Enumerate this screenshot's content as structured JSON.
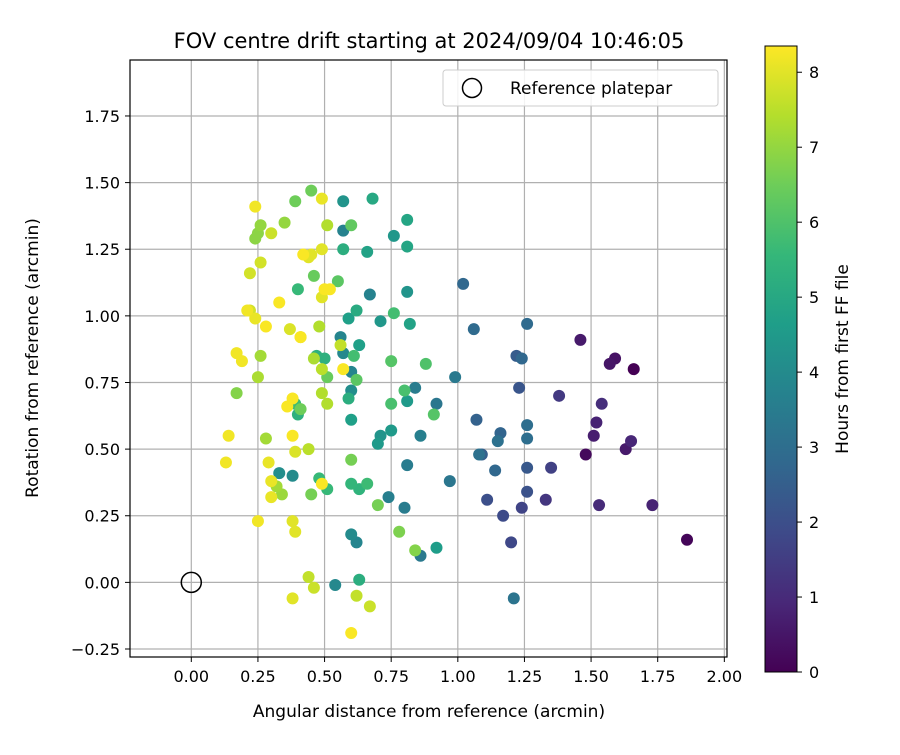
{
  "chart_data": {
    "type": "scatter",
    "title": "FOV centre drift starting at 2024/09/04 10:46:05",
    "xlabel": "Angular distance from reference (arcmin)",
    "ylabel": "Rotation from reference (arcmin)",
    "xlim": [
      -0.23,
      2.01
    ],
    "ylim": [
      -0.28,
      1.96
    ],
    "x_ticks": [
      "0.00",
      "0.25",
      "0.50",
      "0.75",
      "1.00",
      "1.25",
      "1.50",
      "1.75",
      "2.00"
    ],
    "y_ticks": [
      "−0.25",
      "0.00",
      "0.25",
      "0.50",
      "0.75",
      "1.00",
      "1.25",
      "1.50",
      "1.75"
    ],
    "grid": true,
    "legend": {
      "position": "top-right",
      "entries": [
        {
          "label": "Reference platepar",
          "marker": "open-circle"
        }
      ]
    },
    "reference_point": {
      "x": 0.0,
      "y": 0.0
    },
    "colorbar": {
      "label": "Hours from first FF file",
      "colormap": "viridis",
      "range": [
        0,
        8.35
      ],
      "ticks": [
        "0",
        "1",
        "2",
        "3",
        "4",
        "5",
        "6",
        "7",
        "8"
      ]
    },
    "series": [
      {
        "points": [
          [
            1.66,
            0.8,
            0.0
          ],
          [
            1.86,
            0.16,
            0.1
          ],
          [
            1.48,
            0.48,
            0.2
          ],
          [
            1.59,
            0.84,
            0.4
          ],
          [
            1.46,
            0.91,
            0.6
          ],
          [
            1.57,
            0.82,
            0.5
          ],
          [
            1.51,
            0.55,
            0.7
          ],
          [
            1.52,
            0.6,
            0.8
          ],
          [
            1.63,
            0.5,
            0.6
          ],
          [
            1.65,
            0.53,
            0.9
          ],
          [
            1.53,
            0.29,
            1.0
          ],
          [
            1.73,
            0.29,
            0.8
          ],
          [
            1.54,
            0.67,
            1.1
          ],
          [
            1.33,
            0.31,
            1.3
          ],
          [
            1.38,
            0.7,
            1.4
          ],
          [
            1.35,
            0.43,
            1.6
          ],
          [
            1.24,
            0.28,
            1.7
          ],
          [
            1.2,
            0.15,
            1.8
          ],
          [
            1.17,
            0.25,
            1.9
          ],
          [
            1.11,
            0.31,
            2.0
          ],
          [
            1.26,
            0.34,
            2.1
          ],
          [
            1.23,
            0.73,
            2.2
          ],
          [
            1.26,
            0.43,
            2.3
          ],
          [
            1.22,
            0.85,
            2.4
          ],
          [
            1.09,
            0.48,
            2.5
          ],
          [
            1.07,
            0.61,
            2.6
          ],
          [
            1.16,
            0.56,
            2.7
          ],
          [
            1.14,
            0.42,
            2.8
          ],
          [
            1.06,
            0.95,
            2.9
          ],
          [
            1.02,
            1.12,
            2.8
          ],
          [
            1.24,
            0.84,
            2.8
          ],
          [
            1.26,
            0.97,
            2.9
          ],
          [
            1.26,
            0.54,
            3.0
          ],
          [
            1.26,
            0.59,
            3.0
          ],
          [
            1.08,
            0.48,
            3.1
          ],
          [
            1.15,
            0.53,
            3.1
          ],
          [
            1.21,
            -0.06,
            3.2
          ],
          [
            0.97,
            0.38,
            3.3
          ],
          [
            0.92,
            0.67,
            3.3
          ],
          [
            0.99,
            0.77,
            3.4
          ],
          [
            0.86,
            0.1,
            3.4
          ],
          [
            0.84,
            0.73,
            3.5
          ],
          [
            0.81,
            0.44,
            3.5
          ],
          [
            0.8,
            0.28,
            3.5
          ],
          [
            0.86,
            0.55,
            3.6
          ],
          [
            0.74,
            0.32,
            3.6
          ],
          [
            0.67,
            1.08,
            3.7
          ],
          [
            0.57,
            1.32,
            3.7
          ],
          [
            0.56,
            0.92,
            3.8
          ],
          [
            0.6,
            0.79,
            3.8
          ],
          [
            0.62,
            0.15,
            3.8
          ],
          [
            0.57,
            0.86,
            3.9
          ],
          [
            0.54,
            -0.01,
            3.9
          ],
          [
            0.6,
            0.18,
            4.0
          ],
          [
            0.38,
            0.4,
            4.0
          ],
          [
            0.33,
            0.41,
            4.1
          ],
          [
            0.6,
            0.72,
            4.1
          ],
          [
            0.57,
            1.43,
            4.3
          ],
          [
            0.71,
            0.55,
            4.3
          ],
          [
            0.81,
            1.09,
            4.3
          ],
          [
            0.76,
            1.3,
            4.4
          ],
          [
            0.71,
            0.98,
            4.4
          ],
          [
            0.81,
            0.68,
            4.5
          ],
          [
            0.75,
            0.57,
            4.5
          ],
          [
            0.7,
            0.52,
            4.5
          ],
          [
            0.92,
            0.13,
            4.6
          ],
          [
            0.63,
            0.89,
            4.7
          ],
          [
            0.59,
            0.99,
            4.7
          ],
          [
            0.6,
            0.61,
            4.7
          ],
          [
            0.66,
            1.24,
            4.8
          ],
          [
            0.82,
            0.97,
            4.8
          ],
          [
            0.81,
            1.36,
            4.9
          ],
          [
            0.81,
            1.26,
            4.9
          ],
          [
            0.68,
            1.44,
            5.0
          ],
          [
            0.62,
            1.02,
            5.1
          ],
          [
            0.59,
            0.69,
            5.2
          ],
          [
            0.63,
            0.01,
            5.2
          ],
          [
            0.57,
            1.25,
            5.2
          ],
          [
            0.5,
            0.84,
            5.3
          ],
          [
            0.47,
            0.85,
            5.3
          ],
          [
            0.4,
            0.63,
            5.3
          ],
          [
            0.63,
            0.35,
            5.4
          ],
          [
            0.6,
            0.37,
            5.5
          ],
          [
            0.51,
            0.35,
            5.6
          ],
          [
            0.48,
            0.39,
            5.6
          ],
          [
            0.4,
            1.1,
            5.6
          ],
          [
            0.39,
            0.67,
            5.7
          ],
          [
            0.66,
            0.37,
            5.7
          ],
          [
            0.61,
            0.85,
            5.8
          ],
          [
            0.76,
            1.01,
            5.8
          ],
          [
            0.75,
            0.67,
            5.9
          ],
          [
            0.8,
            0.72,
            5.9
          ],
          [
            0.88,
            0.82,
            6.0
          ],
          [
            0.91,
            0.63,
            6.1
          ],
          [
            0.75,
            0.83,
            6.1
          ],
          [
            0.62,
            0.76,
            6.2
          ],
          [
            0.55,
            1.13,
            6.2
          ],
          [
            0.6,
            1.34,
            6.3
          ],
          [
            0.51,
            0.77,
            6.4
          ],
          [
            0.46,
            1.15,
            6.4
          ],
          [
            0.45,
            1.47,
            6.5
          ],
          [
            0.39,
            1.43,
            6.5
          ],
          [
            0.41,
            0.65,
            6.5
          ],
          [
            0.45,
            0.33,
            6.6
          ],
          [
            0.6,
            0.46,
            6.6
          ],
          [
            0.7,
            0.29,
            6.6
          ],
          [
            0.78,
            0.19,
            6.7
          ],
          [
            0.84,
            0.12,
            6.8
          ],
          [
            0.17,
            0.71,
            6.8
          ],
          [
            0.25,
            1.31,
            6.9
          ],
          [
            0.24,
            1.29,
            6.9
          ],
          [
            0.26,
            1.34,
            7.0
          ],
          [
            0.35,
            1.35,
            7.0
          ],
          [
            0.34,
            0.33,
            7.1
          ],
          [
            0.32,
            0.36,
            7.2
          ],
          [
            0.28,
            0.54,
            7.2
          ],
          [
            0.26,
            0.85,
            7.2
          ],
          [
            0.25,
            0.77,
            7.3
          ],
          [
            0.46,
            0.84,
            7.3
          ],
          [
            0.49,
            0.71,
            7.4
          ],
          [
            0.48,
            0.96,
            7.4
          ],
          [
            0.51,
            0.67,
            7.4
          ],
          [
            0.49,
            0.8,
            7.5
          ],
          [
            0.44,
            0.5,
            7.5
          ],
          [
            0.51,
            1.34,
            7.4
          ],
          [
            0.56,
            0.89,
            7.6
          ],
          [
            0.62,
            -0.05,
            7.6
          ],
          [
            0.67,
            -0.09,
            7.7
          ],
          [
            0.44,
            0.02,
            7.6
          ],
          [
            0.46,
            -0.02,
            7.7
          ],
          [
            0.3,
            1.31,
            7.7
          ],
          [
            0.22,
            1.16,
            7.8
          ],
          [
            0.26,
            1.2,
            7.8
          ],
          [
            0.22,
            1.02,
            7.8
          ],
          [
            0.37,
            0.95,
            7.9
          ],
          [
            0.41,
            0.92,
            7.9
          ],
          [
            0.39,
            0.49,
            7.9
          ],
          [
            0.38,
            0.23,
            8.0
          ],
          [
            0.39,
            0.19,
            8.0
          ],
          [
            0.38,
            -0.06,
            8.0
          ],
          [
            0.45,
            1.23,
            8.0
          ],
          [
            0.44,
            1.22,
            8.0
          ],
          [
            0.49,
            1.07,
            8.0
          ],
          [
            0.49,
            1.25,
            8.0
          ],
          [
            0.49,
            1.44,
            8.1
          ],
          [
            0.3,
            0.38,
            8.1
          ],
          [
            0.3,
            0.32,
            8.1
          ],
          [
            0.29,
            0.45,
            8.1
          ],
          [
            0.24,
            0.99,
            8.1
          ],
          [
            0.21,
            1.02,
            8.2
          ],
          [
            0.19,
            0.83,
            8.2
          ],
          [
            0.17,
            0.86,
            8.2
          ],
          [
            0.14,
            0.55,
            8.2
          ],
          [
            0.13,
            0.45,
            8.2
          ],
          [
            0.25,
            0.23,
            8.2
          ],
          [
            0.24,
            1.41,
            8.2
          ],
          [
            0.28,
            0.96,
            8.3
          ],
          [
            0.33,
            1.05,
            8.3
          ],
          [
            0.36,
            0.66,
            8.3
          ],
          [
            0.38,
            0.69,
            8.3
          ],
          [
            0.38,
            0.55,
            8.3
          ],
          [
            0.41,
            0.92,
            8.3
          ],
          [
            0.42,
            1.23,
            8.3
          ],
          [
            0.5,
            1.1,
            8.3
          ],
          [
            0.52,
            1.1,
            8.3
          ],
          [
            0.49,
            0.37,
            8.3
          ],
          [
            0.57,
            0.8,
            8.3
          ],
          [
            0.6,
            -0.19,
            8.3
          ]
        ]
      }
    ]
  }
}
